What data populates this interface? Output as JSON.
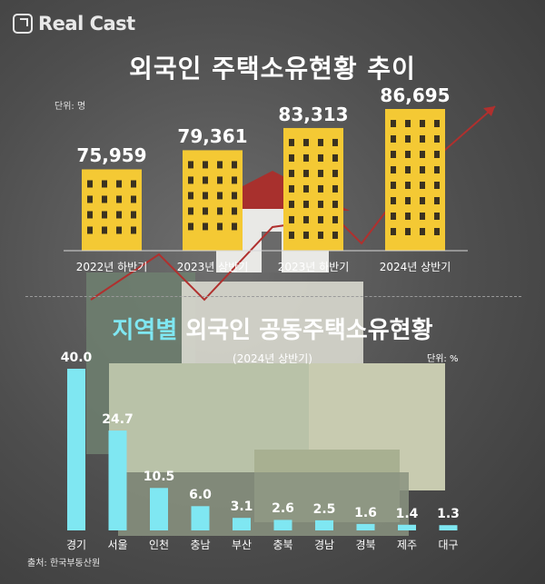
{
  "brand": {
    "name": "Real Cast",
    "icon": "arrow-out-square-icon"
  },
  "colors": {
    "bar_yellow": "#f4c934",
    "window_dark": "#3b3220",
    "bar_cyan": "#7fe7f2",
    "trend_red": "#b0302e"
  },
  "chart_data": [
    {
      "type": "bar",
      "title": "외국인 주택소유현황 추이",
      "unit_label": "단위: 명",
      "categories": [
        "2022년 하반기",
        "2023년 상반기",
        "2023년 하반기",
        "2024년 상반기"
      ],
      "values": [
        75959,
        79361,
        83313,
        86695
      ],
      "value_labels": [
        "75,959",
        "79,361",
        "83,313",
        "86,695"
      ]
    },
    {
      "type": "bar",
      "title_highlight": "지역별",
      "title_rest": " 외국인 공동주택소유현황",
      "subtitle": "(2024년 상반기)",
      "unit_label": "단위: %",
      "categories": [
        "경기",
        "서울",
        "인천",
        "충남",
        "부산",
        "충북",
        "경남",
        "경북",
        "제주",
        "대구"
      ],
      "values": [
        40.0,
        24.7,
        10.5,
        6.0,
        3.1,
        2.6,
        2.5,
        1.6,
        1.4,
        1.3
      ],
      "value_labels": [
        "40.0",
        "24.7",
        "10.5",
        "6.0",
        "3.1",
        "2.6",
        "2.5",
        "1.6",
        "1.4",
        "1.3"
      ],
      "ylim": [
        0,
        40
      ]
    }
  ],
  "source": "출처: 한국부동산원"
}
